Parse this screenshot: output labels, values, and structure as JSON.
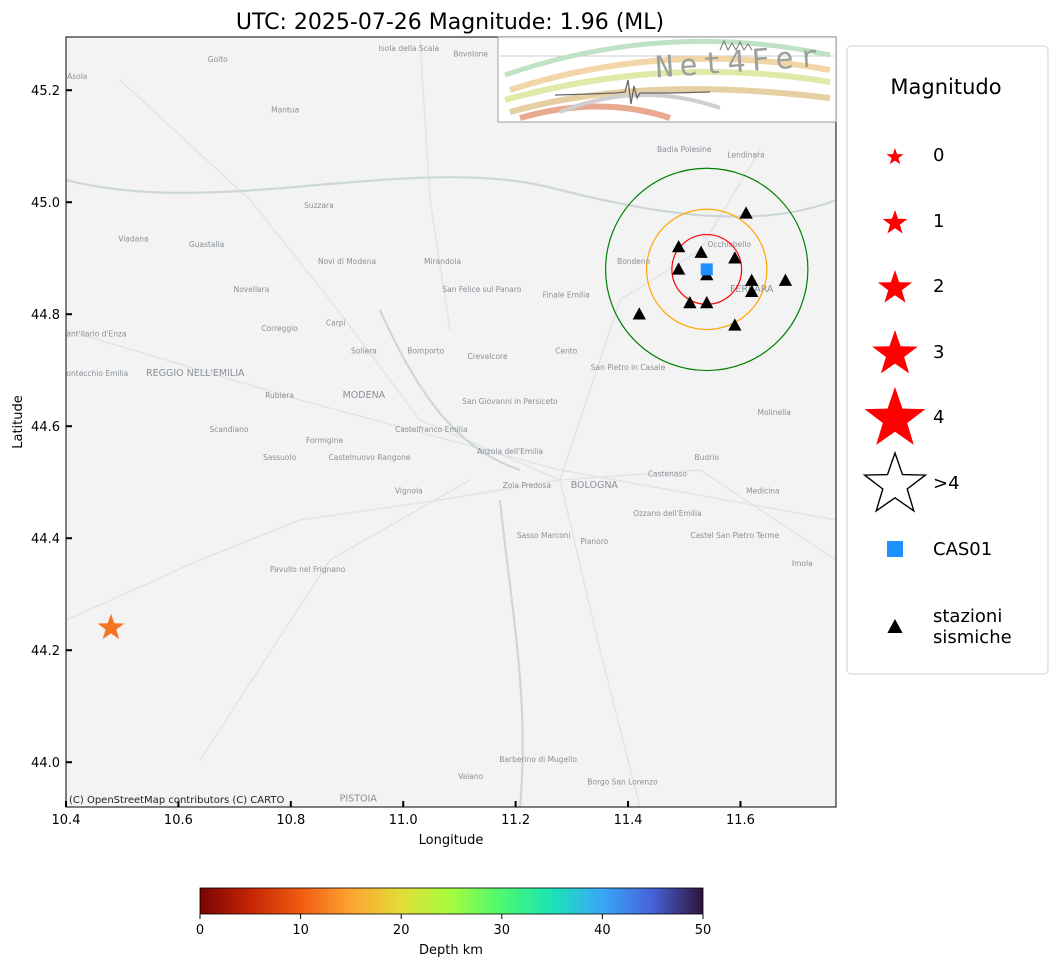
{
  "title": "UTC: 2025-07-26 Magnitude: 1.96 (ML)",
  "map": {
    "xlabel": "Longitude",
    "ylabel": "Latitude",
    "xlim": [
      10.4,
      11.77
    ],
    "ylim": [
      43.92,
      45.295
    ],
    "xticks": [
      "10.4",
      "10.6",
      "10.8",
      "11.0",
      "11.2",
      "11.4",
      "11.6"
    ],
    "yticks": [
      "44.0",
      "44.2",
      "44.4",
      "44.6",
      "44.8",
      "45.0",
      "45.2"
    ],
    "attribution": "(C) OpenStreetMap contributors (C) CARTO",
    "logo_text": "Net4Fer",
    "place_labels": [
      {
        "name": "Asola",
        "lon": 10.42,
        "lat": 45.22
      },
      {
        "name": "Goito",
        "lon": 10.67,
        "lat": 45.25
      },
      {
        "name": "Isola della Scala",
        "lon": 11.01,
        "lat": 45.27
      },
      {
        "name": "Bovolone",
        "lon": 11.12,
        "lat": 45.26
      },
      {
        "name": "Mantua",
        "lon": 10.79,
        "lat": 45.16
      },
      {
        "name": "Badia Polesine",
        "lon": 11.5,
        "lat": 45.09
      },
      {
        "name": "Lendinara",
        "lon": 11.61,
        "lat": 45.08
      },
      {
        "name": "Viadana",
        "lon": 10.52,
        "lat": 44.93
      },
      {
        "name": "Guastalla",
        "lon": 10.65,
        "lat": 44.92
      },
      {
        "name": "Suzzara",
        "lon": 10.85,
        "lat": 44.99
      },
      {
        "name": "Novi di Modena",
        "lon": 10.9,
        "lat": 44.89
      },
      {
        "name": "Mirandola",
        "lon": 11.07,
        "lat": 44.89
      },
      {
        "name": "San Felice sul Panaro",
        "lon": 11.14,
        "lat": 44.84
      },
      {
        "name": "Finale Emilia",
        "lon": 11.29,
        "lat": 44.83
      },
      {
        "name": "Bondeno",
        "lon": 11.41,
        "lat": 44.89
      },
      {
        "name": "Occhiobello",
        "lon": 11.58,
        "lat": 44.92
      },
      {
        "name": "FERRARA",
        "lon": 11.62,
        "lat": 44.84
      },
      {
        "name": "Novellara",
        "lon": 10.73,
        "lat": 44.84
      },
      {
        "name": "Correggio",
        "lon": 10.78,
        "lat": 44.77
      },
      {
        "name": "Carpi",
        "lon": 10.88,
        "lat": 44.78
      },
      {
        "name": "Soliera",
        "lon": 10.93,
        "lat": 44.73
      },
      {
        "name": "Bomporto",
        "lon": 11.04,
        "lat": 44.73
      },
      {
        "name": "Crevalcore",
        "lon": 11.15,
        "lat": 44.72
      },
      {
        "name": "Cento",
        "lon": 11.29,
        "lat": 44.73
      },
      {
        "name": "San Pietro in Casale",
        "lon": 11.4,
        "lat": 44.7
      },
      {
        "name": "Sant'Ilario d'Enza",
        "lon": 10.45,
        "lat": 44.76
      },
      {
        "name": "Montecchio Emilia",
        "lon": 10.45,
        "lat": 44.69
      },
      {
        "name": "REGGIO NELL'EMILIA",
        "lon": 10.63,
        "lat": 44.69
      },
      {
        "name": "MODENA",
        "lon": 10.93,
        "lat": 44.65
      },
      {
        "name": "Rubiera",
        "lon": 10.78,
        "lat": 44.65
      },
      {
        "name": "Scandiano",
        "lon": 10.69,
        "lat": 44.59
      },
      {
        "name": "Formigine",
        "lon": 10.86,
        "lat": 44.57
      },
      {
        "name": "Castelfranco Emilia",
        "lon": 11.05,
        "lat": 44.59
      },
      {
        "name": "San Giovanni in Persiceto",
        "lon": 11.19,
        "lat": 44.64
      },
      {
        "name": "Sassuolo",
        "lon": 10.78,
        "lat": 44.54
      },
      {
        "name": "Castelnuovo Rangone",
        "lon": 10.94,
        "lat": 44.54
      },
      {
        "name": "Anzola dell'Emilia",
        "lon": 11.19,
        "lat": 44.55
      },
      {
        "name": "Castenaso",
        "lon": 11.47,
        "lat": 44.51
      },
      {
        "name": "Budrio",
        "lon": 11.54,
        "lat": 44.54
      },
      {
        "name": "Molinella",
        "lon": 11.66,
        "lat": 44.62
      },
      {
        "name": "Vignola",
        "lon": 11.01,
        "lat": 44.48
      },
      {
        "name": "Zola Predosa",
        "lon": 11.22,
        "lat": 44.49
      },
      {
        "name": "BOLOGNA",
        "lon": 11.34,
        "lat": 44.49
      },
      {
        "name": "Medicina",
        "lon": 11.64,
        "lat": 44.48
      },
      {
        "name": "Ozzano dell'Emilia",
        "lon": 11.47,
        "lat": 44.44
      },
      {
        "name": "Castel San Pietro Terme",
        "lon": 11.59,
        "lat": 44.4
      },
      {
        "name": "Imola",
        "lon": 11.71,
        "lat": 44.35
      },
      {
        "name": "Sasso Marconi",
        "lon": 11.25,
        "lat": 44.4
      },
      {
        "name": "Pianoro",
        "lon": 11.34,
        "lat": 44.39
      },
      {
        "name": "Pavullo nel Frignano",
        "lon": 10.83,
        "lat": 44.34
      },
      {
        "name": "Barberino di Mugello",
        "lon": 11.24,
        "lat": 44.0
      },
      {
        "name": "Borgo San Lorenzo",
        "lon": 11.39,
        "lat": 43.96
      },
      {
        "name": "Vaiano",
        "lon": 11.12,
        "lat": 43.97
      },
      {
        "name": "PISTOIA",
        "lon": 10.92,
        "lat": 43.93
      }
    ]
  },
  "event": {
    "lon": 10.48,
    "lat": 44.24,
    "magnitude": 1.96,
    "depth_km": 8,
    "color": "#f47421"
  },
  "reference_station": {
    "name": "CAS01",
    "lon": 11.54,
    "lat": 44.88,
    "color": "#1e90ff"
  },
  "rings": [
    {
      "radius_deg": 0.062,
      "color": "#ff0000"
    },
    {
      "radius_deg": 0.107,
      "color": "#ffa500"
    },
    {
      "radius_deg": 0.18,
      "color": "#008000"
    }
  ],
  "stations": [
    {
      "lon": 11.61,
      "lat": 44.98
    },
    {
      "lon": 11.49,
      "lat": 44.92
    },
    {
      "lon": 11.53,
      "lat": 44.91
    },
    {
      "lon": 11.59,
      "lat": 44.9
    },
    {
      "lon": 11.49,
      "lat": 44.88
    },
    {
      "lon": 11.54,
      "lat": 44.87
    },
    {
      "lon": 11.62,
      "lat": 44.86
    },
    {
      "lon": 11.68,
      "lat": 44.86
    },
    {
      "lon": 11.62,
      "lat": 44.84
    },
    {
      "lon": 11.51,
      "lat": 44.82
    },
    {
      "lon": 11.54,
      "lat": 44.82
    },
    {
      "lon": 11.42,
      "lat": 44.8
    },
    {
      "lon": 11.59,
      "lat": 44.78
    }
  ],
  "legend": {
    "title": "Magnitudo",
    "items": [
      {
        "label": "0",
        "kind": "star",
        "size": 1
      },
      {
        "label": "1",
        "kind": "star",
        "size": 2
      },
      {
        "label": "2",
        "kind": "star",
        "size": 3
      },
      {
        "label": "3",
        "kind": "star",
        "size": 4
      },
      {
        "label": ">4",
        "kind": "star-outline",
        "size": 5
      },
      {
        "label": "4",
        "kind": "star",
        "size": 5
      },
      {
        "label": "CAS01",
        "kind": "square",
        "size": 1
      },
      {
        "label": "stazioni\nsismiche",
        "kind": "triangle",
        "size": 1
      }
    ],
    "star_color": "#ff0000",
    "square_color": "#1e90ff",
    "triangle_color": "#000000"
  },
  "colorbar": {
    "label": "Depth km",
    "ticks": [
      "0",
      "10",
      "20",
      "30",
      "40",
      "50"
    ],
    "range": [
      0,
      50
    ],
    "colormap": "turbo_r"
  }
}
